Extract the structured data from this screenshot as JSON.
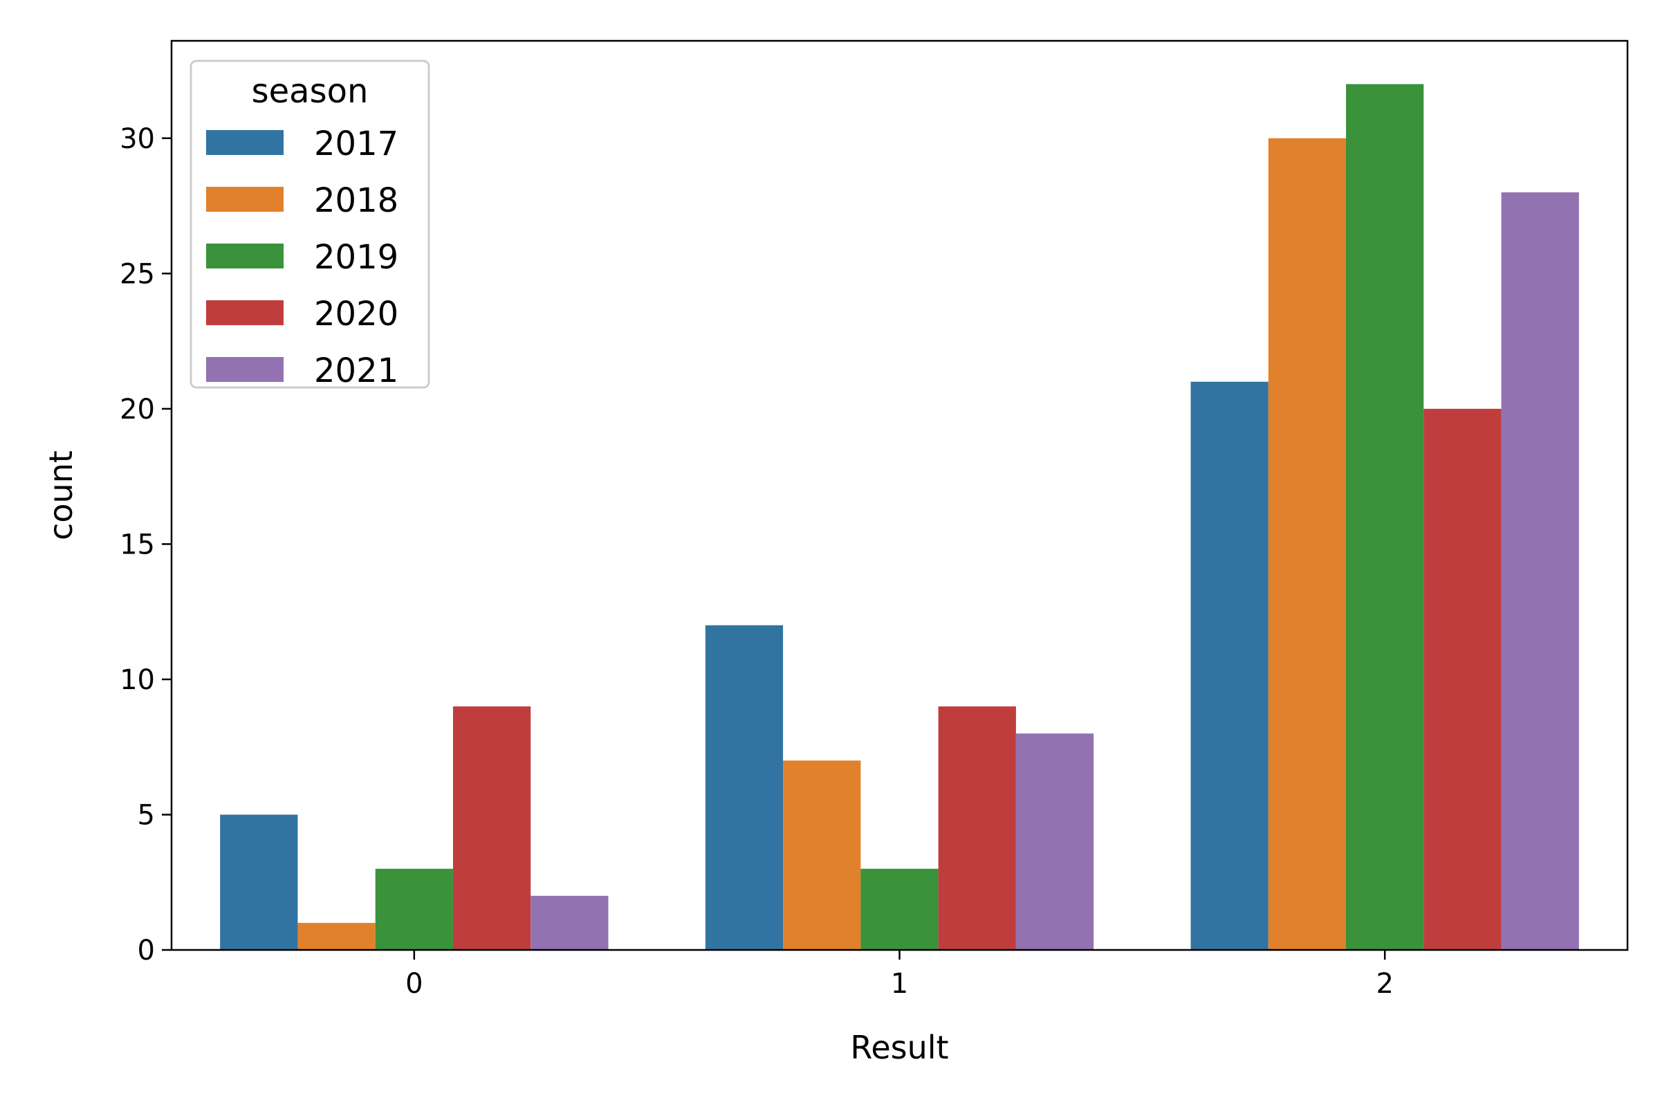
{
  "chart_data": {
    "type": "bar",
    "categories": [
      "0",
      "1",
      "2"
    ],
    "series": [
      {
        "name": "2017",
        "color": "#3274a1",
        "values": [
          5,
          12,
          21
        ]
      },
      {
        "name": "2018",
        "color": "#e1812c",
        "values": [
          1,
          7,
          30
        ]
      },
      {
        "name": "2019",
        "color": "#3a923a",
        "values": [
          3,
          3,
          32
        ]
      },
      {
        "name": "2020",
        "color": "#c03d3e",
        "values": [
          9,
          9,
          20
        ]
      },
      {
        "name": "2021",
        "color": "#9372b2",
        "values": [
          2,
          8,
          28
        ]
      }
    ],
    "xlabel": "Result",
    "ylabel": "count",
    "ylim": [
      0,
      33.6
    ],
    "yticks": [
      0,
      5,
      10,
      15,
      20,
      25,
      30
    ],
    "grid": false,
    "legend": {
      "title": "season",
      "placement": "top-left"
    }
  }
}
